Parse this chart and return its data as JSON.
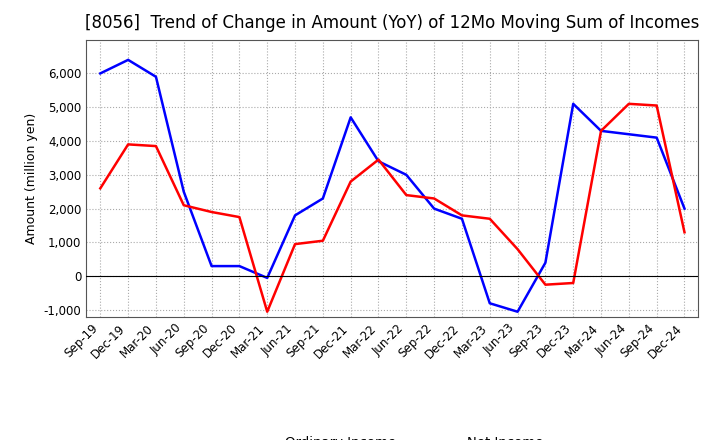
{
  "title": "[8056]  Trend of Change in Amount (YoY) of 12Mo Moving Sum of Incomes",
  "ylabel": "Amount (million yen)",
  "x_labels": [
    "Sep-19",
    "Dec-19",
    "Mar-20",
    "Jun-20",
    "Sep-20",
    "Dec-20",
    "Mar-21",
    "Jun-21",
    "Sep-21",
    "Dec-21",
    "Mar-22",
    "Jun-22",
    "Sep-22",
    "Dec-22",
    "Mar-23",
    "Jun-23",
    "Sep-23",
    "Dec-23",
    "Mar-24",
    "Jun-24",
    "Sep-24",
    "Dec-24"
  ],
  "ordinary_income": [
    6000,
    6400,
    5900,
    2500,
    300,
    300,
    -50,
    1800,
    2300,
    4700,
    3400,
    3000,
    2000,
    1700,
    -800,
    -1050,
    400,
    5100,
    4300,
    4200,
    4100,
    2000
  ],
  "net_income": [
    2600,
    3900,
    3850,
    2100,
    1900,
    1750,
    -1050,
    950,
    1050,
    2800,
    3450,
    2400,
    2300,
    1800,
    1700,
    800,
    -250,
    -200,
    4300,
    5100,
    5050,
    1300
  ],
  "ordinary_color": "#0000FF",
  "net_color": "#FF0000",
  "ylim": [
    -1200,
    7000
  ],
  "yticks": [
    -1000,
    0,
    1000,
    2000,
    3000,
    4000,
    5000,
    6000
  ],
  "background_color": "#FFFFFF",
  "grid_color": "#AAAAAA",
  "title_fontsize": 12,
  "label_fontsize": 9,
  "tick_fontsize": 8.5
}
